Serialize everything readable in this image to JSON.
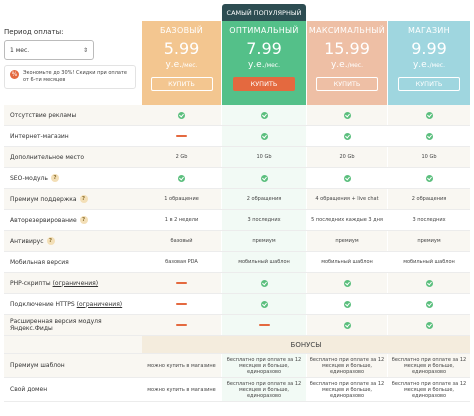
{
  "popular_label": "САМЫЙ ПОПУЛЯРНЫЙ",
  "period": {
    "label": "Период оплаты:",
    "selected": "1 мес.",
    "savings_text": "Экономьте до 30%! Скидки при оплате от 6-ти месяцев",
    "savings_icon": "percent-icon"
  },
  "plans": [
    {
      "name": "БАЗОВЫЙ",
      "price": "5.99",
      "unit": "у.е.",
      "per": "/мес.",
      "buy": "КУПИТЬ",
      "color": "#f3c690"
    },
    {
      "name": "ОПТИМАЛЬНЫЙ",
      "price": "7.99",
      "unit": "у.е.",
      "per": "/мес.",
      "buy": "КУПИТЬ",
      "color": "#54c089"
    },
    {
      "name": "МАКСИМАЛЬНЫЙ",
      "price": "15.99",
      "unit": "у.е.",
      "per": "/мес.",
      "buy": "КУПИТЬ",
      "color": "#eebfa5"
    },
    {
      "name": "МАГАЗИН",
      "price": "9.99",
      "unit": "у.е.",
      "per": "/мес.",
      "buy": "КУПИТЬ",
      "color": "#9fd6df"
    }
  ],
  "features": [
    {
      "label": "Отсутствие рекламы"
    },
    {
      "label": "Интернет-магазин"
    },
    {
      "label": "Дополнительное место",
      "values": [
        "2 Gb",
        "10 Gb",
        "20 Gb",
        "10 Gb"
      ]
    },
    {
      "label": "SEO-модуль"
    },
    {
      "label": "Премиум поддержка",
      "values": [
        "1 обращение",
        "2 обращения",
        "4 обращения + live chat",
        "2 обращения"
      ]
    },
    {
      "label": "Авторезервирование",
      "values": [
        "1 в 2 недели",
        "3 последних",
        "5 последних каждые 3 дня",
        "3 последних"
      ]
    },
    {
      "label": "Антивирус",
      "values": [
        "базовый",
        "премиум",
        "премиум",
        "премиум"
      ]
    },
    {
      "label": "Мобильная версия",
      "values": [
        "базовая PDA",
        "мобильный шаблон",
        "мобильный шаблон",
        "мобильный шаблон"
      ]
    },
    {
      "label": "PHP-скрипты",
      "link": "(ограничения)"
    },
    {
      "label": "Подключение HTTPS",
      "link": "(ограничения)"
    },
    {
      "label": "Расширенная версия модуля Яндекс.Фиды"
    }
  ],
  "bonus": {
    "title": "БОНУСЫ",
    "rows": [
      {
        "label": "Премиум шаблон",
        "values": [
          "можно купить в магазине",
          "бесплатно при оплате за 12 месяцев и больше, единоразово",
          "бесплатно при оплате за 12 месяцев и больше, единоразово",
          "бесплатно при оплате за 12 месяцев и больше, единоразово"
        ]
      },
      {
        "label": "Свой домен",
        "values": [
          "можно купить в магазине",
          "бесплатно при оплате за 12 месяцев и больше, единоразово",
          "бесплатно при оплате за 12 месяцев и больше, единоразово",
          "бесплатно при оплате за 12 месяцев и больше, единоразово"
        ]
      }
    ]
  },
  "colors": {
    "check": "#5cbf7e",
    "dash": "#e4693f",
    "popular": "#2d4d52"
  }
}
